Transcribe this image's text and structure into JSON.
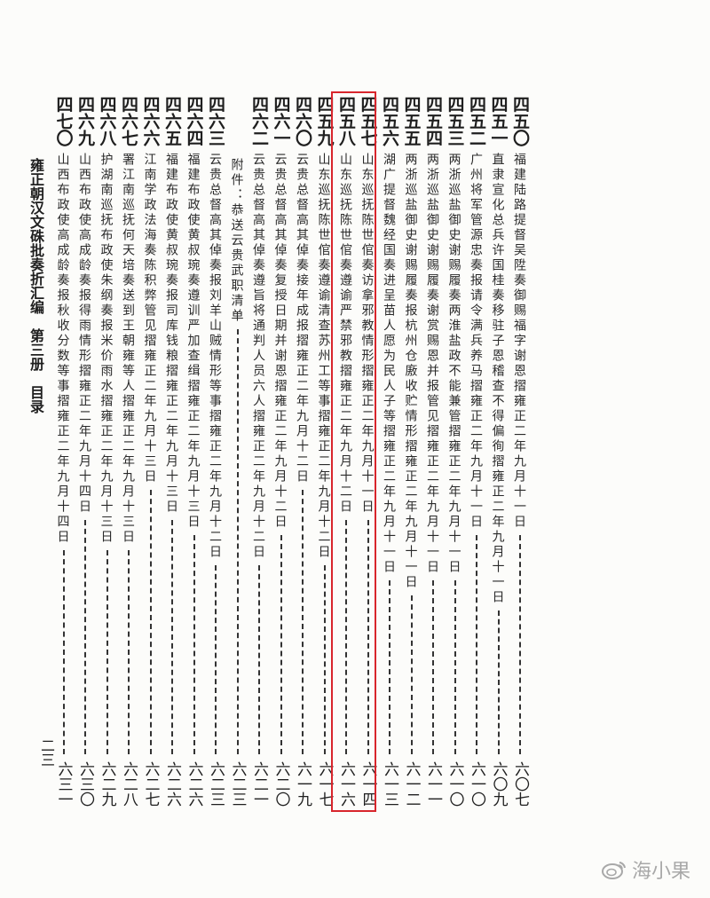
{
  "side_title": "雍正朝汉文硃批奏折汇编　第三册　目录",
  "page_number": "二三",
  "watermark": "海小果",
  "highlight_color": "#d8252c",
  "entries": [
    {
      "num": "四五〇",
      "title": "福建陆路提督吴陞奏御赐福字谢恩摺雍正二年九月十一日",
      "page": "六〇七"
    },
    {
      "num": "四五一",
      "title": "直隶宣化总兵许国桂奏移驻子恩稽查不得偏徇摺雍正二年九月十一日",
      "page": "六〇九"
    },
    {
      "num": "四五二",
      "title": "广州将军管源忠奏报请令满兵养马摺雍正二年九月十一日",
      "page": "六一〇"
    },
    {
      "num": "四五三",
      "title": "两浙巡盐御史谢赐履奏两淮盐政不能兼管摺雍正二年九月十一日",
      "page": "六一〇"
    },
    {
      "num": "四五四",
      "title": "两浙巡盐御史谢赐履奏谢赏赐恩并报管见摺雍正二年九月十一日",
      "page": "六一一"
    },
    {
      "num": "四五五",
      "title": "两浙巡盐御史谢赐履奏报杭州仓廒收贮情形摺雍正二年九月十一日",
      "page": "六一二"
    },
    {
      "num": "四五六",
      "title": "湖广提督魏经国奏进呈苗人愿为民人子等摺雍正二年九月十一日",
      "page": "六一三"
    },
    {
      "num": "四五七",
      "title": "山东巡抚陈世倌奏访拿邪教情形摺雍正二年九月十一日",
      "page": "六一四"
    },
    {
      "num": "四五八",
      "title": "山东巡抚陈世倌奏遵谕严禁邪教摺雍正二年九月十二日",
      "page": "六一六"
    },
    {
      "num": "四五九",
      "title": "山东巡抚陈世倌奏遵谕清查苏州工等事摺雍正二年九月十二日",
      "page": "六一七"
    },
    {
      "num": "四六〇",
      "title": "云贵总督高其倬奏接年成报摺雍正二年九月十二日",
      "page": "六一九"
    },
    {
      "num": "四六一",
      "title": "云贵总督高其倬奏复授日期并谢恩摺雍正二年九月十二日",
      "page": "六二〇"
    },
    {
      "num": "四六二",
      "title": "云贵总督高其倬奏遵旨将通判人员六人摺雍正二年九月十二日",
      "page": "六二一"
    },
    {
      "num": "",
      "title": "附件：恭送云贵武职清单",
      "page": "六二三"
    },
    {
      "num": "四六三",
      "title": "云贵总督高其倬奏报刘羊山贼情形等事摺雍正二年九月十二日",
      "page": "六二三"
    },
    {
      "num": "四六四",
      "title": "福建布政使黄叔琬奏遵训严加查缉摺雍正二年九月十三日",
      "page": "六二六"
    },
    {
      "num": "四六五",
      "title": "福建布政使黄叔琬奏报司库钱粮摺雍正二年九月十三日",
      "page": "六二六"
    },
    {
      "num": "四六六",
      "title": "江南学政法海奏陈积弊管见摺雍正二年九月十三日",
      "page": "六二七"
    },
    {
      "num": "四六七",
      "title": "署江南巡抚何天培奏送到王朝雍等人摺雍正二年九月十三日",
      "page": "六二八"
    },
    {
      "num": "四六八",
      "title": "护湖南巡抚布政使朱纲奏报米价雨水摺雍正二年九月十三日",
      "page": "六二九"
    },
    {
      "num": "四六九",
      "title": "山西布政使高成龄奏报得雨情形摺雍正二年九月十四日",
      "page": "六三〇"
    },
    {
      "num": "四七〇",
      "title": "山西布政使高成龄奏报秋收分数等事摺雍正二年九月十四日",
      "page": "六三一"
    }
  ]
}
